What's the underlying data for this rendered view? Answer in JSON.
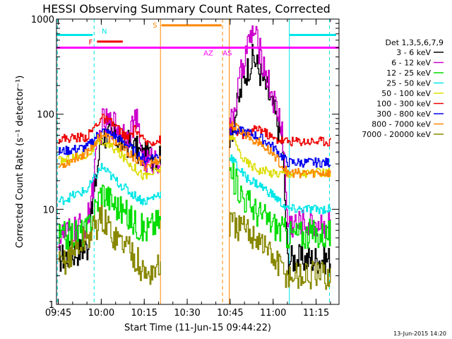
{
  "chart_data": {
    "type": "line",
    "title": "HESSI Observing Summary Count Rates, Corrected",
    "xlabel": "Start Time (11-Jun-15 09:44:22)",
    "ylabel": "Corrected Count Rate (s⁻¹ detector⁻¹)",
    "y_scale": "log",
    "ylim": [
      1,
      1000
    ],
    "xlim": [
      "09:44:22",
      "11:23:00"
    ],
    "y_ticks": [
      1,
      10,
      100,
      1000
    ],
    "x_ticks": [
      "09:45",
      "10:00",
      "10:15",
      "10:30",
      "10:45",
      "11:00",
      "11:15"
    ],
    "legend_title": "Det 1,3,5,6,7,9",
    "legend_position": "right",
    "footer": "13-Jun-2015 14:20",
    "series": [
      {
        "name": "3 - 6 keV",
        "color": "#000000",
        "points": [
          [
            "09:45",
            3
          ],
          [
            "09:55",
            4
          ],
          [
            "10:00",
            62
          ],
          [
            "10:05",
            55
          ],
          [
            "10:10",
            48
          ],
          [
            "10:15",
            35
          ],
          [
            "10:45",
            60
          ],
          [
            "10:50",
            260
          ],
          [
            "10:53",
            400
          ],
          [
            "10:57",
            210
          ],
          [
            "11:00",
            110
          ],
          [
            "11:03",
            55
          ],
          [
            "11:05",
            3
          ],
          [
            "11:20",
            3
          ]
        ]
      },
      {
        "name": "6 - 12 keV",
        "color": "#cc00cc",
        "points": [
          [
            "09:45",
            5
          ],
          [
            "09:55",
            7
          ],
          [
            "10:00",
            82
          ],
          [
            "10:05",
            78
          ],
          [
            "10:09",
            60
          ],
          [
            "10:12",
            88
          ],
          [
            "10:15",
            30
          ],
          [
            "10:45",
            70
          ],
          [
            "10:50",
            420
          ],
          [
            "10:53",
            760
          ],
          [
            "10:57",
            300
          ],
          [
            "11:00",
            140
          ],
          [
            "11:03",
            75
          ],
          [
            "11:05",
            7
          ],
          [
            "11:20",
            7
          ]
        ]
      },
      {
        "name": "12 - 25 keV",
        "color": "#00dd00",
        "points": [
          [
            "09:45",
            5
          ],
          [
            "09:55",
            6
          ],
          [
            "10:00",
            16
          ],
          [
            "10:05",
            11
          ],
          [
            "10:10",
            8
          ],
          [
            "10:15",
            6
          ],
          [
            "10:45",
            24
          ],
          [
            "10:50",
            13
          ],
          [
            "10:55",
            9
          ],
          [
            "11:00",
            7
          ],
          [
            "11:05",
            5.5
          ],
          [
            "11:20",
            5.5
          ]
        ]
      },
      {
        "name": "25 - 50 keV",
        "color": "#00e6e6",
        "points": [
          [
            "09:45",
            12
          ],
          [
            "09:55",
            16
          ],
          [
            "10:00",
            28
          ],
          [
            "10:05",
            20
          ],
          [
            "10:10",
            15
          ],
          [
            "10:15",
            12
          ],
          [
            "10:45",
            36
          ],
          [
            "10:50",
            22
          ],
          [
            "10:55",
            18
          ],
          [
            "11:00",
            14
          ],
          [
            "11:05",
            10
          ],
          [
            "11:20",
            10
          ]
        ]
      },
      {
        "name": "50 - 100 keV",
        "color": "#dddd00",
        "points": [
          [
            "09:45",
            32
          ],
          [
            "09:55",
            38
          ],
          [
            "10:00",
            52
          ],
          [
            "10:05",
            42
          ],
          [
            "10:10",
            30
          ],
          [
            "10:15",
            22
          ],
          [
            "10:45",
            60
          ],
          [
            "10:50",
            32
          ],
          [
            "10:55",
            26
          ],
          [
            "11:00",
            24
          ],
          [
            "11:05",
            24
          ],
          [
            "11:20",
            24
          ]
        ]
      },
      {
        "name": "100 - 300 keV",
        "color": "#ee0000",
        "points": [
          [
            "09:45",
            55
          ],
          [
            "09:55",
            58
          ],
          [
            "10:00",
            92
          ],
          [
            "10:05",
            75
          ],
          [
            "10:09",
            55
          ],
          [
            "10:12",
            70
          ],
          [
            "10:15",
            50
          ],
          [
            "10:45",
            72
          ],
          [
            "10:50",
            60
          ],
          [
            "10:55",
            72
          ],
          [
            "11:00",
            55
          ],
          [
            "11:05",
            52
          ],
          [
            "11:20",
            52
          ]
        ]
      },
      {
        "name": "300 - 800 keV",
        "color": "#0000ee",
        "points": [
          [
            "09:45",
            40
          ],
          [
            "09:55",
            45
          ],
          [
            "10:00",
            68
          ],
          [
            "10:05",
            58
          ],
          [
            "10:10",
            45
          ],
          [
            "10:15",
            33
          ],
          [
            "10:45",
            68
          ],
          [
            "10:50",
            65
          ],
          [
            "10:55",
            58
          ],
          [
            "11:00",
            45
          ],
          [
            "11:05",
            31
          ],
          [
            "11:20",
            31
          ]
        ]
      },
      {
        "name": "800 - 7000 keV",
        "color": "#ff8800",
        "points": [
          [
            "09:45",
            28
          ],
          [
            "09:55",
            40
          ],
          [
            "10:00",
            62
          ],
          [
            "10:05",
            50
          ],
          [
            "10:10",
            38
          ],
          [
            "10:15",
            28
          ],
          [
            "10:45",
            78
          ],
          [
            "10:50",
            62
          ],
          [
            "10:55",
            50
          ],
          [
            "11:00",
            38
          ],
          [
            "11:05",
            24
          ],
          [
            "11:20",
            24
          ]
        ]
      },
      {
        "name": "7000 - 20000 keV",
        "color": "#888800",
        "points": [
          [
            "09:45",
            2.5
          ],
          [
            "09:55",
            5
          ],
          [
            "10:00",
            8
          ],
          [
            "10:05",
            5
          ],
          [
            "10:10",
            4
          ],
          [
            "10:15",
            2
          ],
          [
            "10:45",
            7
          ],
          [
            "10:50",
            6
          ],
          [
            "10:55",
            5
          ],
          [
            "11:00",
            3
          ],
          [
            "11:05",
            2
          ],
          [
            "11:20",
            2
          ]
        ]
      }
    ],
    "flag_bars": [
      {
        "label": "N",
        "color": "#00e6e6",
        "start": "09:44:22",
        "end": "09:57:00",
        "level": 680
      },
      {
        "label": "F",
        "color": "#ee0000",
        "start": "09:58:30",
        "end": "10:07:30",
        "level": 580
      },
      {
        "label": "S",
        "color": "#ff8800",
        "start": "10:21:00",
        "end": "10:42:00",
        "level": 860
      },
      {
        "label": "AZ",
        "color": "#ff00ff",
        "start": "09:44:22",
        "end": "11:23:00",
        "level": 500
      },
      {
        "label": "AS",
        "color": "#ff00ff",
        "start": "10:44:00",
        "end": "10:44:00",
        "level": 500
      },
      {
        "label": "",
        "color": "#00e6e6",
        "start": "11:05:40",
        "end": "11:22:00",
        "level": 680
      }
    ],
    "vertical_markers": [
      {
        "time": "09:44:40",
        "color": "#00e6e6",
        "style": "dashed"
      },
      {
        "time": "09:57:30",
        "color": "#00e6e6",
        "style": "dashed"
      },
      {
        "time": "10:20:40",
        "color": "#ff8800",
        "style": "solid"
      },
      {
        "time": "10:42:20",
        "color": "#ff8800",
        "style": "dashed"
      },
      {
        "time": "10:44:40",
        "color": "#ff8800",
        "style": "solid"
      },
      {
        "time": "11:05:40",
        "color": "#00e6e6",
        "style": "solid"
      },
      {
        "time": "11:19:40",
        "color": "#00e6e6",
        "style": "dashed"
      }
    ],
    "data_gap": [
      "10:20:40",
      "10:44:40"
    ]
  }
}
